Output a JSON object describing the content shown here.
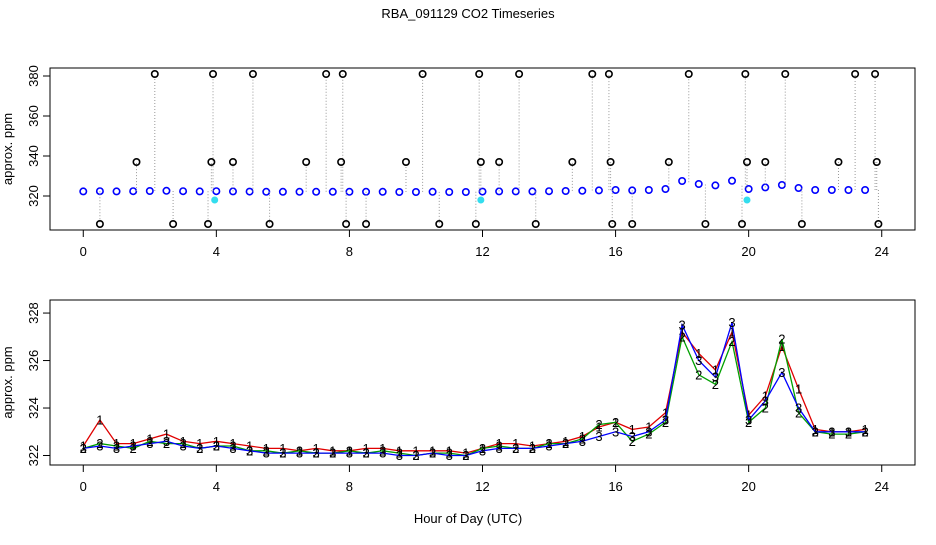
{
  "chart_data": [
    {
      "type": "line",
      "title": "RBA_091129  CO2 Timeseries",
      "ylabel": "approx. ppm",
      "xlim": [
        -1,
        25
      ],
      "xticks": [
        0,
        4,
        8,
        12,
        16,
        20,
        24
      ],
      "ylim": [
        303,
        384
      ],
      "yticks": [
        320,
        340,
        360,
        380
      ],
      "series": [
        {
          "color": "#0000ff",
          "marker": "circle",
          "x": [
            0,
            0.5,
            1,
            1.5,
            2,
            2.5,
            3,
            3.5,
            4,
            4.5,
            5,
            5.5,
            6,
            6.5,
            7,
            7.5,
            8,
            8.5,
            9,
            9.5,
            10,
            10.5,
            11,
            11.5,
            12,
            12.5,
            13,
            13.5,
            14,
            14.5,
            15,
            15.5,
            16,
            16.5,
            17,
            17.5,
            18,
            18.5,
            19,
            19.5,
            20,
            20.5,
            21,
            21.5,
            22,
            22.5,
            23,
            23.5
          ],
          "values": [
            322.3,
            322.4,
            322.3,
            322.4,
            322.5,
            322.6,
            322.4,
            322.3,
            322.4,
            322.3,
            322.2,
            322.1,
            322.1,
            322.1,
            322.1,
            322.1,
            322.1,
            322.1,
            322.1,
            322,
            322,
            322.1,
            322,
            322,
            322.2,
            322.3,
            322.3,
            322.3,
            322.4,
            322.5,
            322.6,
            322.8,
            323,
            322.8,
            323,
            323.5,
            327.5,
            326,
            325.3,
            327.6,
            323.5,
            324.3,
            325.5,
            324,
            323,
            323,
            323,
            323
          ]
        },
        {
          "color": "#000000",
          "marker": "circle",
          "stem": true,
          "x": [
            2.15,
            3.9,
            5.1,
            7.3,
            7.8,
            10.2,
            11.9,
            13.1,
            15.3,
            15.8,
            18.2,
            19.9,
            21.1,
            23.2,
            23.8,
            0.5,
            2.7,
            3.75,
            5.6,
            7.9,
            8.5,
            10.7,
            11.8,
            13.6,
            15.9,
            16.5,
            18.7,
            19.8,
            21.6,
            23.9,
            1.6,
            3.85,
            4.5,
            6.7,
            7.75,
            9.7,
            11.95,
            12.5,
            14.7,
            15.85,
            17.6,
            19.95,
            20.5,
            22.7,
            23.85
          ],
          "values": [
            381,
            381,
            381,
            381,
            381,
            381,
            381,
            381,
            381,
            381,
            381,
            381,
            381,
            381,
            381,
            306,
            306,
            306,
            306,
            306,
            306,
            306,
            306,
            306,
            306,
            306,
            306,
            306,
            306,
            306,
            337,
            337,
            337,
            337,
            337,
            337,
            337,
            337,
            337,
            337,
            337,
            337,
            337,
            337,
            337
          ]
        },
        {
          "color": "#33ddee",
          "marker": "dot",
          "x": [
            3.95,
            11.95,
            19.95
          ],
          "values": [
            318,
            318,
            318
          ]
        }
      ]
    },
    {
      "type": "line",
      "ylabel": "approx. ppm",
      "xlabel": "Hour of Day (UTC)",
      "xlim": [
        -1,
        25
      ],
      "xticks": [
        0,
        4,
        8,
        12,
        16,
        20,
        24
      ],
      "ylim": [
        321.6,
        328.55
      ],
      "yticks": [
        322,
        324,
        326,
        328
      ],
      "x": [
        0,
        0.5,
        1,
        1.5,
        2,
        2.5,
        3,
        3.5,
        4,
        4.5,
        5,
        5.5,
        6,
        6.5,
        7,
        7.5,
        8,
        8.5,
        9,
        9.5,
        10,
        10.5,
        11,
        11.5,
        12,
        12.5,
        13,
        13.5,
        14,
        14.5,
        15,
        15.5,
        16,
        16.5,
        17,
        17.5,
        18,
        18.5,
        19,
        19.5,
        20,
        20.5,
        21,
        21.5,
        22,
        22.5,
        23,
        23.5
      ],
      "series": [
        {
          "name": "1",
          "color": "#e00000",
          "marker": "glyph",
          "values": [
            322.4,
            323.5,
            322.5,
            322.5,
            322.7,
            322.9,
            322.6,
            322.5,
            322.6,
            322.5,
            322.4,
            322.3,
            322.3,
            322.2,
            322.3,
            322.2,
            322.2,
            322.3,
            322.3,
            322.2,
            322.2,
            322.2,
            322.2,
            322.1,
            322.3,
            322.5,
            322.5,
            322.4,
            322.5,
            322.6,
            322.8,
            323.2,
            323.4,
            323.1,
            323.2,
            323.8,
            327.2,
            326.3,
            325.6,
            327.2,
            323.7,
            324.5,
            326.6,
            324.8,
            323.1,
            323,
            323,
            323.1
          ]
        },
        {
          "name": "2",
          "color": "#00a000",
          "marker": "glyph",
          "values": [
            322.3,
            322.5,
            322.4,
            322.3,
            322.6,
            322.5,
            322.5,
            322.3,
            322.4,
            322.4,
            322.2,
            322.2,
            322.1,
            322.2,
            322.1,
            322.1,
            322.2,
            322.1,
            322.2,
            322.1,
            322,
            322.1,
            322.1,
            322,
            322.3,
            322.4,
            322.3,
            322.3,
            322.5,
            322.5,
            322.7,
            323.3,
            323.4,
            322.6,
            322.9,
            323.4,
            327,
            325.4,
            325,
            326.8,
            323.4,
            324,
            326.9,
            323.8,
            323,
            322.9,
            322.9,
            323
          ]
        },
        {
          "name": "3",
          "color": "#0000ff",
          "marker": "glyph",
          "values": [
            322.3,
            322.4,
            322.3,
            322.4,
            322.5,
            322.6,
            322.4,
            322.3,
            322.4,
            322.3,
            322.2,
            322.1,
            322.1,
            322.1,
            322.1,
            322.1,
            322.1,
            322.1,
            322.1,
            322,
            322,
            322.1,
            322,
            322,
            322.2,
            322.3,
            322.3,
            322.3,
            322.4,
            322.5,
            322.6,
            322.8,
            323,
            322.8,
            323,
            323.5,
            327.5,
            326,
            325.3,
            327.6,
            323.5,
            324.3,
            325.5,
            324,
            323,
            323,
            323,
            323
          ]
        }
      ]
    }
  ]
}
